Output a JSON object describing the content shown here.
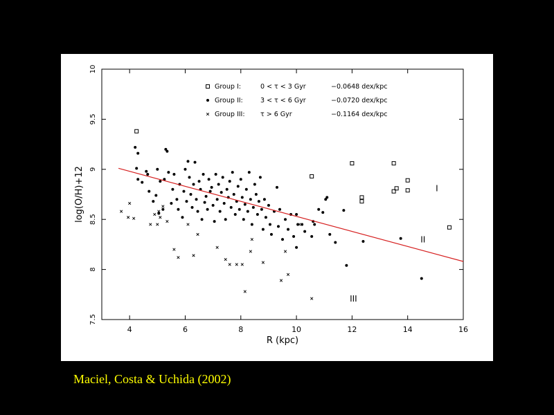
{
  "caption": "Maciel, Costa & Uchida (2002)",
  "colors": {
    "background": "#000000",
    "panel": "#ffffff",
    "fit_line": "#d62020",
    "caption": "#ffff00"
  },
  "chart_data": {
    "type": "scatter",
    "title": "",
    "xlabel": "R (kpc)",
    "ylabel": "log(O/H)+12",
    "xlim": [
      3,
      16
    ],
    "ylim": [
      7.5,
      10
    ],
    "xticks": [
      4,
      6,
      8,
      10,
      12,
      14,
      16
    ],
    "yticks": [
      7.5,
      8,
      8.5,
      9,
      9.5,
      10
    ],
    "grid": false,
    "legend_position": "top",
    "legend": [
      {
        "marker": "square",
        "group": "Group I:",
        "age": "0 < τ < 3 Gyr",
        "gradient": "−0.0648 dex/kpc"
      },
      {
        "marker": "dot",
        "group": "Group II:",
        "age": "3 < τ < 6 Gyr",
        "gradient": "−0.0720 dex/kpc"
      },
      {
        "marker": "cross",
        "group": "Group III:",
        "age": "τ > 6 Gyr",
        "gradient": "−0.1164 dex/kpc"
      }
    ],
    "annotations": [
      {
        "text": "I",
        "x": 15.05,
        "y": 8.78
      },
      {
        "text": "II",
        "x": 14.55,
        "y": 8.27
      },
      {
        "text": "III",
        "x": 12.05,
        "y": 7.68
      }
    ],
    "fit_line": {
      "x": [
        3.6,
        16
      ],
      "y": [
        9.01,
        8.08
      ]
    },
    "series": [
      {
        "name": "Group I",
        "marker": "square",
        "points": [
          [
            4.25,
            9.38
          ],
          [
            10.55,
            8.93
          ],
          [
            12.0,
            9.06
          ],
          [
            12.35,
            8.68
          ],
          [
            12.35,
            8.72
          ],
          [
            13.5,
            9.06
          ],
          [
            13.5,
            8.78
          ],
          [
            13.6,
            8.81
          ],
          [
            14.0,
            8.89
          ],
          [
            14.0,
            8.79
          ],
          [
            15.5,
            8.42
          ]
        ]
      },
      {
        "name": "Group II",
        "marker": "dot",
        "points": [
          [
            4.2,
            9.22
          ],
          [
            4.3,
            9.16
          ],
          [
            4.25,
            9.01
          ],
          [
            4.3,
            8.9
          ],
          [
            4.45,
            8.87
          ],
          [
            4.6,
            8.98
          ],
          [
            4.65,
            8.95
          ],
          [
            4.7,
            8.78
          ],
          [
            4.85,
            8.68
          ],
          [
            4.95,
            8.74
          ],
          [
            5.0,
            9.0
          ],
          [
            5.05,
            8.56
          ],
          [
            5.1,
            8.88
          ],
          [
            5.2,
            8.6
          ],
          [
            5.25,
            8.9
          ],
          [
            5.3,
            9.2
          ],
          [
            5.35,
            9.18
          ],
          [
            5.4,
            8.97
          ],
          [
            5.5,
            8.66
          ],
          [
            5.55,
            8.8
          ],
          [
            5.6,
            8.95
          ],
          [
            5.7,
            8.7
          ],
          [
            5.75,
            8.6
          ],
          [
            5.8,
            8.85
          ],
          [
            5.9,
            8.52
          ],
          [
            5.95,
            8.78
          ],
          [
            6.0,
            9.0
          ],
          [
            6.05,
            8.68
          ],
          [
            6.1,
            9.08
          ],
          [
            6.15,
            8.92
          ],
          [
            6.2,
            8.75
          ],
          [
            6.25,
            8.62
          ],
          [
            6.3,
            8.85
          ],
          [
            6.35,
            9.07
          ],
          [
            6.4,
            8.7
          ],
          [
            6.45,
            8.58
          ],
          [
            6.5,
            8.88
          ],
          [
            6.55,
            8.8
          ],
          [
            6.6,
            8.5
          ],
          [
            6.65,
            8.95
          ],
          [
            6.7,
            8.67
          ],
          [
            6.75,
            8.73
          ],
          [
            6.8,
            8.6
          ],
          [
            6.85,
            8.9
          ],
          [
            6.9,
            8.78
          ],
          [
            6.95,
            8.82
          ],
          [
            7.0,
            8.64
          ],
          [
            7.05,
            8.48
          ],
          [
            7.1,
            8.95
          ],
          [
            7.15,
            8.7
          ],
          [
            7.2,
            8.85
          ],
          [
            7.25,
            8.58
          ],
          [
            7.3,
            8.77
          ],
          [
            7.35,
            8.92
          ],
          [
            7.4,
            8.66
          ],
          [
            7.45,
            8.5
          ],
          [
            7.5,
            8.8
          ],
          [
            7.55,
            8.72
          ],
          [
            7.6,
            8.88
          ],
          [
            7.65,
            8.62
          ],
          [
            7.7,
            8.97
          ],
          [
            7.75,
            8.75
          ],
          [
            7.8,
            8.55
          ],
          [
            7.85,
            8.68
          ],
          [
            7.9,
            8.83
          ],
          [
            7.95,
            8.6
          ],
          [
            8.0,
            8.9
          ],
          [
            8.05,
            8.72
          ],
          [
            8.1,
            8.5
          ],
          [
            8.15,
            8.65
          ],
          [
            8.2,
            8.8
          ],
          [
            8.25,
            8.58
          ],
          [
            8.3,
            8.97
          ],
          [
            8.35,
            8.7
          ],
          [
            8.4,
            8.45
          ],
          [
            8.45,
            8.62
          ],
          [
            8.5,
            8.85
          ],
          [
            8.55,
            8.75
          ],
          [
            8.6,
            8.55
          ],
          [
            8.65,
            8.68
          ],
          [
            8.7,
            8.92
          ],
          [
            8.75,
            8.6
          ],
          [
            8.8,
            8.4
          ],
          [
            8.85,
            8.7
          ],
          [
            8.9,
            8.52
          ],
          [
            9.0,
            8.64
          ],
          [
            9.05,
            8.45
          ],
          [
            9.1,
            8.35
          ],
          [
            9.2,
            8.58
          ],
          [
            9.3,
            8.82
          ],
          [
            9.35,
            8.43
          ],
          [
            9.4,
            8.6
          ],
          [
            9.5,
            8.3
          ],
          [
            9.6,
            8.5
          ],
          [
            9.7,
            8.4
          ],
          [
            9.8,
            8.55
          ],
          [
            9.9,
            8.33
          ],
          [
            10.0,
            8.55
          ],
          [
            10.0,
            8.22
          ],
          [
            10.05,
            8.45
          ],
          [
            10.2,
            8.45
          ],
          [
            10.3,
            8.38
          ],
          [
            10.55,
            8.33
          ],
          [
            10.6,
            8.48
          ],
          [
            10.65,
            8.45
          ],
          [
            10.8,
            8.6
          ],
          [
            10.95,
            8.57
          ],
          [
            11.05,
            8.7
          ],
          [
            11.1,
            8.72
          ],
          [
            11.2,
            8.35
          ],
          [
            11.4,
            8.27
          ],
          [
            11.7,
            8.59
          ],
          [
            11.8,
            8.04
          ],
          [
            12.4,
            8.28
          ],
          [
            13.75,
            8.31
          ],
          [
            14.5,
            7.91
          ]
        ]
      },
      {
        "name": "Group III",
        "marker": "cross",
        "points": [
          [
            3.7,
            8.58
          ],
          [
            3.95,
            8.52
          ],
          [
            4.0,
            8.66
          ],
          [
            4.15,
            8.51
          ],
          [
            4.75,
            8.45
          ],
          [
            4.9,
            8.55
          ],
          [
            5.0,
            8.45
          ],
          [
            5.05,
            8.58
          ],
          [
            5.1,
            8.52
          ],
          [
            5.2,
            8.63
          ],
          [
            5.35,
            8.48
          ],
          [
            5.6,
            8.2
          ],
          [
            5.75,
            8.12
          ],
          [
            6.1,
            8.45
          ],
          [
            6.3,
            8.14
          ],
          [
            6.45,
            8.35
          ],
          [
            7.15,
            8.22
          ],
          [
            7.45,
            8.1
          ],
          [
            7.6,
            8.05
          ],
          [
            7.85,
            8.05
          ],
          [
            8.05,
            8.05
          ],
          [
            8.15,
            7.78
          ],
          [
            8.35,
            8.18
          ],
          [
            8.4,
            8.3
          ],
          [
            8.8,
            8.07
          ],
          [
            9.45,
            7.89
          ],
          [
            9.6,
            8.18
          ],
          [
            9.7,
            7.95
          ],
          [
            10.1,
            8.45
          ],
          [
            10.55,
            7.71
          ]
        ]
      }
    ]
  }
}
